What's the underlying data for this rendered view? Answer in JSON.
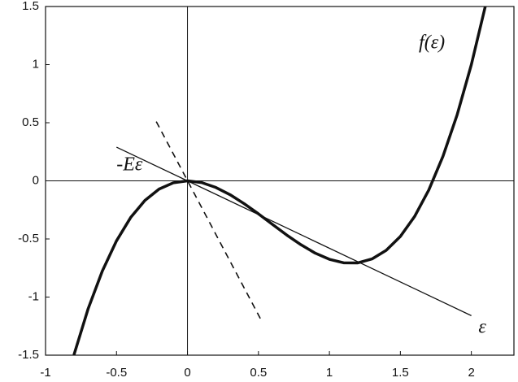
{
  "chart_data": {
    "type": "line",
    "xlim": [
      -1,
      2.3
    ],
    "ylim": [
      -1.5,
      1.5
    ],
    "xticks": [
      -1,
      -0.5,
      0,
      0.5,
      1,
      1.5,
      2
    ],
    "yticks": [
      -1.5,
      -1,
      -0.5,
      0,
      0.5,
      1,
      1.5
    ],
    "series": [
      {
        "color": "#111111",
        "width": 3.5,
        "dash": false,
        "x": [
          -0.8,
          -0.7,
          -0.6,
          -0.5,
          -0.4,
          -0.3,
          -0.2,
          -0.1,
          0,
          0.1,
          0.2,
          0.3,
          0.4,
          0.5,
          0.6,
          0.7,
          0.8,
          0.9,
          1.0,
          1.1,
          1.2,
          1.3,
          1.4,
          1.5,
          1.6,
          1.7,
          1.8,
          1.9,
          2.0,
          2.1
        ],
        "values": [
          -1.498,
          -1.101,
          -0.776,
          -0.516,
          -0.315,
          -0.169,
          -0.071,
          -0.017,
          0,
          -0.015,
          -0.057,
          -0.119,
          -0.197,
          -0.284,
          -0.376,
          -0.467,
          -0.55,
          -0.622,
          -0.675,
          -0.705,
          -0.706,
          -0.672,
          -0.598,
          -0.478,
          -0.307,
          -0.079,
          0.211,
          0.569,
          1.0,
          1.51
        ]
      },
      {
        "color": "#111111",
        "width": 1.3,
        "dash": false,
        "x": [
          -0.5,
          2
        ],
        "values": [
          0.29,
          -1.16
        ]
      },
      {
        "color": "#111111",
        "width": 1.6,
        "dash": true,
        "x": [
          -0.22,
          0.52
        ],
        "values": [
          0.51,
          -1.2
        ]
      }
    ],
    "annotations": [
      {
        "text": "f(ε)",
        "x": 1.63,
        "y": 1.18
      },
      {
        "text": "-Eε",
        "x": -0.5,
        "y": 0.13
      },
      {
        "text": "ε",
        "x": 2.05,
        "y": -1.27
      }
    ]
  }
}
